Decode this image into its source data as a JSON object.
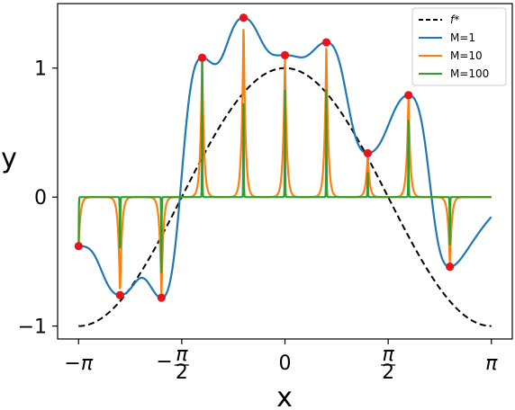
{
  "chart_data": {
    "type": "line",
    "title": "",
    "xlabel": "x",
    "ylabel": "y",
    "xlim": [
      -3.46,
      3.46
    ],
    "ylim": [
      -1.1,
      1.5
    ],
    "x_ticks": [
      {
        "value": -3.14159,
        "label": "−π"
      },
      {
        "value": -1.5708,
        "label": "−π/2"
      },
      {
        "value": 0,
        "label": "0"
      },
      {
        "value": 1.5708,
        "label": "π/2"
      },
      {
        "value": 3.14159,
        "label": "π"
      }
    ],
    "y_ticks": [
      {
        "value": -1,
        "label": "−1"
      },
      {
        "value": 0,
        "label": "0"
      },
      {
        "value": 1,
        "label": "1"
      }
    ],
    "grid": false,
    "legend_position": "top-right",
    "reference": {
      "name": "f*",
      "function": "cos",
      "color": "#000000",
      "style": "dashed"
    },
    "points": [
      {
        "x": -3.14,
        "y": -0.38
      },
      {
        "x": -2.51,
        "y": -0.76
      },
      {
        "x": -1.88,
        "y": -0.78
      },
      {
        "x": -1.26,
        "y": 1.08
      },
      {
        "x": -0.63,
        "y": 1.39
      },
      {
        "x": 0.0,
        "y": 1.1
      },
      {
        "x": 0.63,
        "y": 1.2
      },
      {
        "x": 1.26,
        "y": 0.34
      },
      {
        "x": 1.88,
        "y": 0.79
      },
      {
        "x": 2.51,
        "y": -0.54
      }
    ],
    "point_color": "#e8141b",
    "series": [
      {
        "name": "M=1",
        "color": "#1f77b4",
        "kernel_width": 1
      },
      {
        "name": "M=10",
        "color": "#ff7f0e",
        "kernel_width": 10
      },
      {
        "name": "M=100",
        "color": "#2ca02c",
        "kernel_width": 100
      }
    ]
  },
  "legend": {
    "items": [
      {
        "label": "f*",
        "color": "#000000",
        "dashed": true
      },
      {
        "label": "M=1",
        "color": "#1f77b4",
        "dashed": false
      },
      {
        "label": "M=10",
        "color": "#ff7f0e",
        "dashed": false
      },
      {
        "label": "M=100",
        "color": "#2ca02c",
        "dashed": false
      }
    ]
  }
}
